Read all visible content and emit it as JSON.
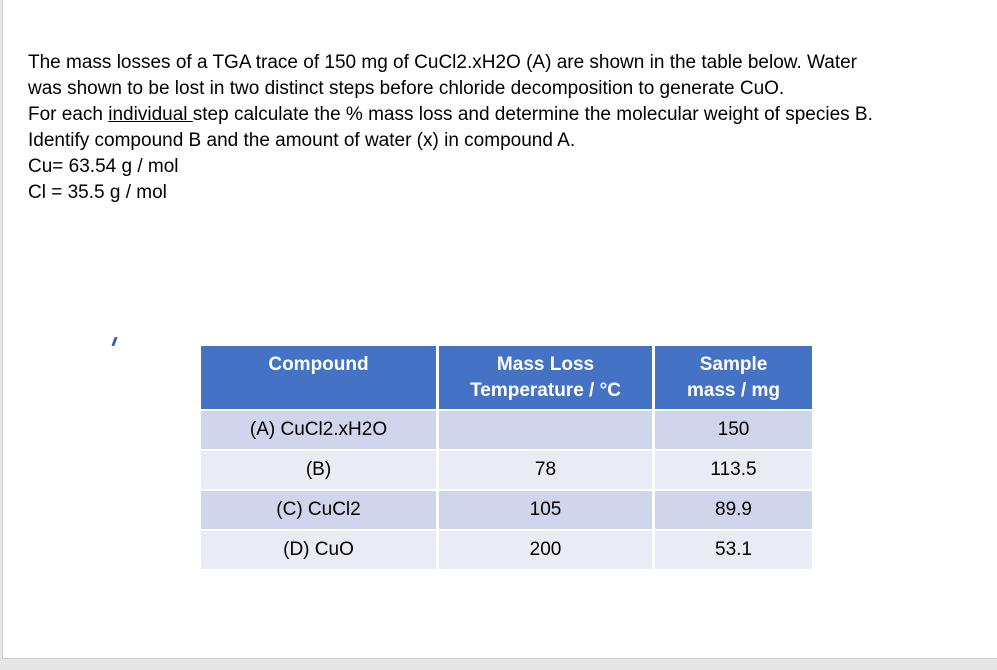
{
  "question": {
    "line1": "The mass losses of a TGA trace of 150 mg of CuCl2.xH2O (A) are shown in the table below. Water",
    "line2": "was shown to be lost in two distinct steps before chloride decomposition to generate CuO.",
    "line3_before": "For each ",
    "line3_underlined": "individual ",
    "line3_after": "step calculate the % mass loss and determine the molecular weight of species B.",
    "line4": " Identify compound B and the amount of water (x) in compound A.",
    "line5": "Cu= 63.54 g / mol",
    "line6": "Cl = 35.5 g / mol"
  },
  "table": {
    "headers": {
      "compound": "Compound",
      "temp_line1": "Mass Loss",
      "temp_line2": "Temperature / °C",
      "mass_line1": "Sample",
      "mass_line2": "mass / mg"
    },
    "rows": [
      {
        "compound": "(A) CuCl2.xH2O",
        "temperature": "",
        "mass": "150"
      },
      {
        "compound": "(B)",
        "temperature": "78",
        "mass": "113.5"
      },
      {
        "compound": "(C) CuCl2",
        "temperature": "105",
        "mass": "89.9"
      },
      {
        "compound": "(D) CuO",
        "temperature": "200",
        "mass": "53.1"
      }
    ]
  },
  "colors": {
    "header_bg": "#4472c4",
    "row_odd_bg": "#cfd5ea",
    "row_even_bg": "#e9ebf5"
  }
}
